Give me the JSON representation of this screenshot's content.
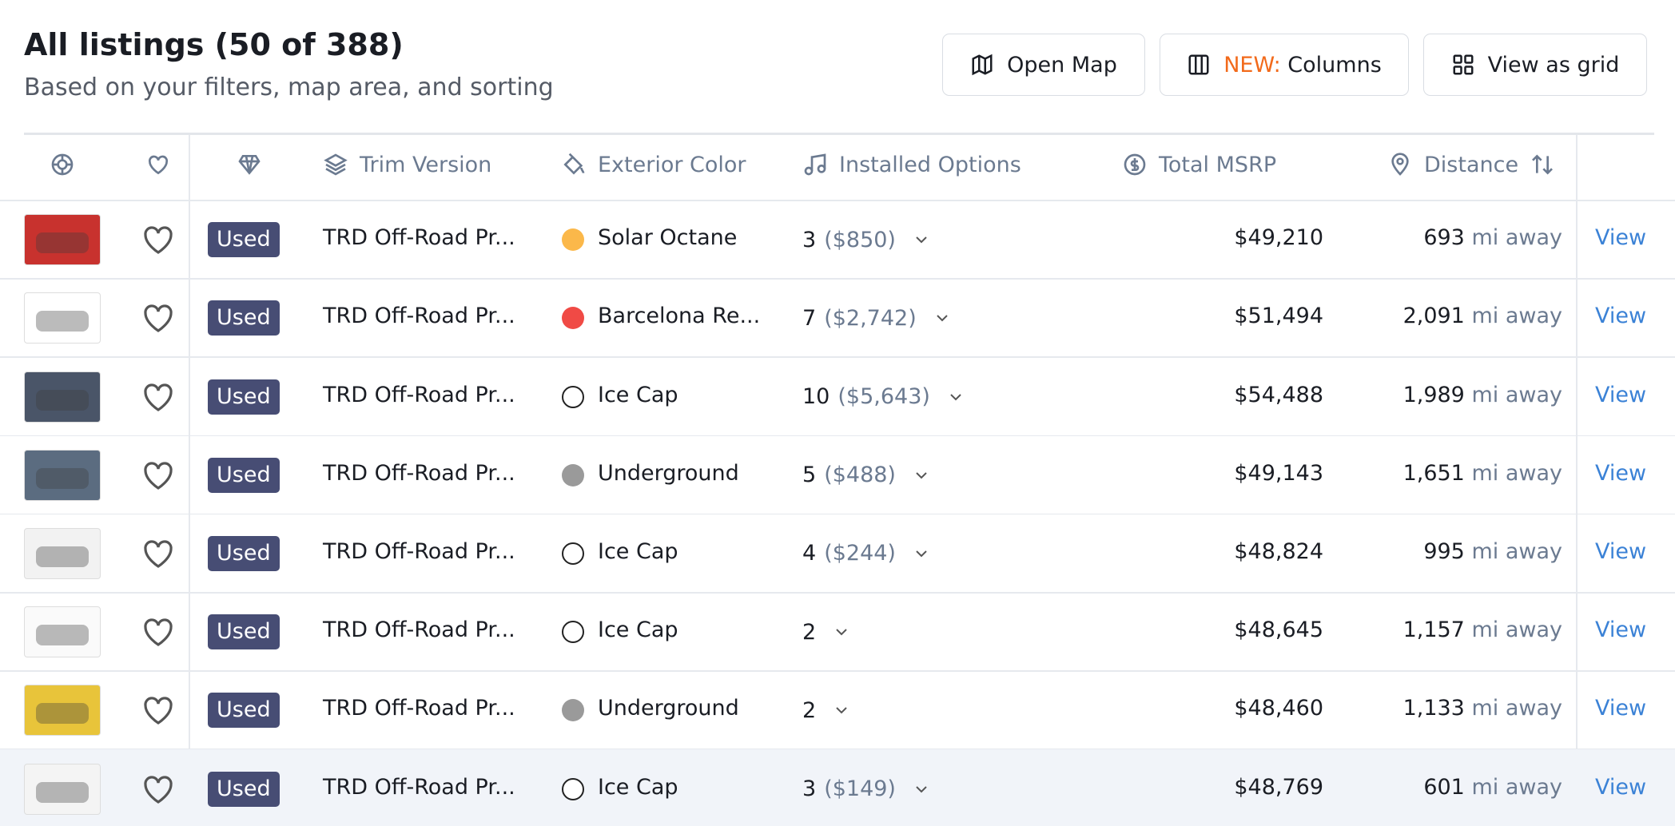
{
  "header": {
    "title": "All listings (50 of 388)",
    "subtitle": "Based on your filters, map area, and sorting"
  },
  "buttons": {
    "open_map": "Open Map",
    "columns_new": "NEW:",
    "columns": "Columns",
    "view_grid": "View as grid"
  },
  "table": {
    "columns": [
      "Trim Version",
      "Exterior Color",
      "Installed Options",
      "Total MSRP",
      "Distance"
    ],
    "distance_unit": "mi away",
    "link_label": "View",
    "rows": [
      {
        "condition": "Used",
        "trim": "TRD Off-Road Pr...",
        "color_name": "Solar Octane",
        "swatch": "#fbb84a",
        "options_count": "3",
        "options_price": "($850)",
        "msrp": "$49,210",
        "distance": "693"
      },
      {
        "condition": "Used",
        "trim": "TRD Off-Road Pr...",
        "color_name": "Barcelona Re...",
        "swatch": "#f04a45",
        "options_count": "7",
        "options_price": "($2,742)",
        "msrp": "$51,494",
        "distance": "2,091"
      },
      {
        "condition": "Used",
        "trim": "TRD Off-Road Pr...",
        "color_name": "Ice Cap",
        "swatch": "#ffffff",
        "options_count": "10",
        "options_price": "($5,643)",
        "msrp": "$54,488",
        "distance": "1,989"
      },
      {
        "condition": "Used",
        "trim": "TRD Off-Road Pr...",
        "color_name": "Underground",
        "swatch": "#9a9a9a",
        "options_count": "5",
        "options_price": "($488)",
        "msrp": "$49,143",
        "distance": "1,651"
      },
      {
        "condition": "Used",
        "trim": "TRD Off-Road Pr...",
        "color_name": "Ice Cap",
        "swatch": "#ffffff",
        "options_count": "4",
        "options_price": "($244)",
        "msrp": "$48,824",
        "distance": "995"
      },
      {
        "condition": "Used",
        "trim": "TRD Off-Road Pr...",
        "color_name": "Ice Cap",
        "swatch": "#ffffff",
        "options_count": "2",
        "options_price": null,
        "msrp": "$48,645",
        "distance": "1,157"
      },
      {
        "condition": "Used",
        "trim": "TRD Off-Road Pr...",
        "color_name": "Underground",
        "swatch": "#9a9a9a",
        "options_count": "2",
        "options_price": null,
        "msrp": "$48,460",
        "distance": "1,133"
      },
      {
        "condition": "Used",
        "trim": "TRD Off-Road Pr...",
        "color_name": "Ice Cap",
        "swatch": "#ffffff",
        "options_count": "3",
        "options_price": "($149)",
        "msrp": "$48,769",
        "distance": "601"
      }
    ]
  }
}
